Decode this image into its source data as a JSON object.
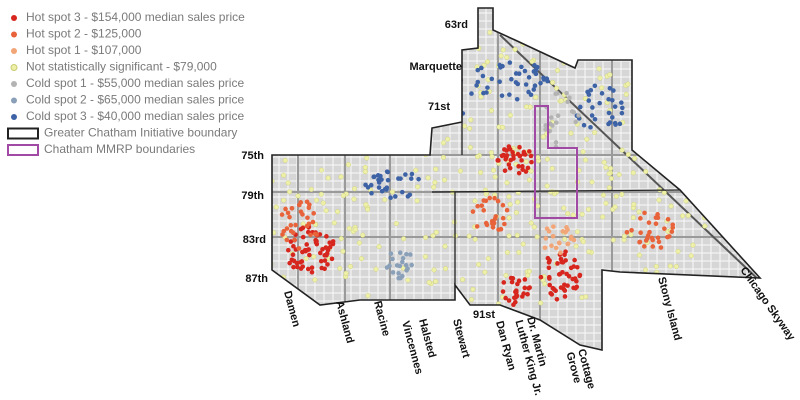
{
  "legend": {
    "items": [
      {
        "label": "Hot spot 3 - $154,000 median sales price",
        "color": "#d7261e"
      },
      {
        "label": "Hot spot 2 - $125,000",
        "color": "#e8623a"
      },
      {
        "label": "Hot spot 1 - $107,000",
        "color": "#f2a577"
      },
      {
        "label": "Not statistically significant - $79,000",
        "color": "#eef0a8"
      },
      {
        "label": "Cold spot 1 - $55,000 median sales price",
        "color": "#b3b3b3"
      },
      {
        "label": "Cold spot 2 - $65,000 median sales price",
        "color": "#8aa0b8"
      },
      {
        "label": "Cold spot 3 - $40,000 median sales price",
        "color": "#3d63a6"
      }
    ],
    "boundaries": [
      {
        "label": "Greater Chatham Initiative boundary",
        "color": "#222222"
      },
      {
        "label": "Chatham MMRP boundaries",
        "color": "#a04aa6"
      }
    ]
  },
  "streets": [
    {
      "lines": [
        "63rd"
      ]
    },
    {
      "lines": [
        "Marquette"
      ]
    },
    {
      "lines": [
        "71st"
      ]
    },
    {
      "lines": [
        "75th"
      ]
    },
    {
      "lines": [
        "79th"
      ]
    },
    {
      "lines": [
        "83rd"
      ]
    },
    {
      "lines": [
        "87th"
      ]
    },
    {
      "lines": [
        "91st"
      ]
    },
    {
      "lines": [
        "Damen"
      ]
    },
    {
      "lines": [
        "Ashland"
      ]
    },
    {
      "lines": [
        "Racine"
      ]
    },
    {
      "lines": [
        "Vincennes"
      ]
    },
    {
      "lines": [
        "Halsted"
      ]
    },
    {
      "lines": [
        "Stewart"
      ]
    },
    {
      "lines": [
        "Dan Ryan"
      ]
    },
    {
      "lines": [
        "Dr. Martin",
        "Luther King Jr."
      ]
    },
    {
      "lines": [
        "Cottage",
        "Grove"
      ]
    },
    {
      "lines": [
        "Stony Island"
      ]
    },
    {
      "lines": [
        "Chicago Skyway"
      ]
    }
  ]
}
